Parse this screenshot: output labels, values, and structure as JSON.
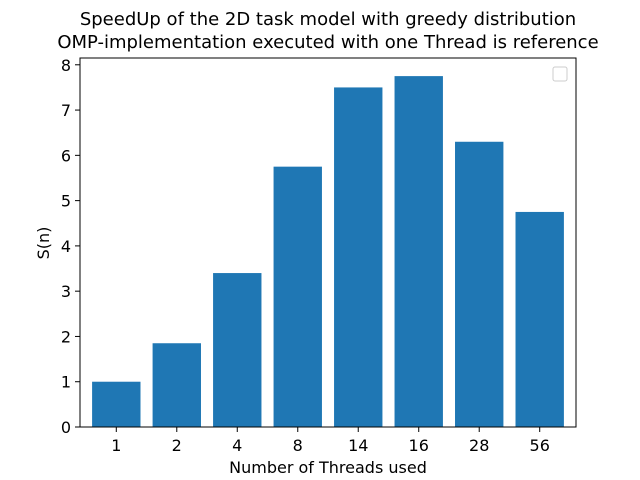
{
  "chart_data": {
    "type": "bar",
    "title": "SpeedUp of the 2D task model with greedy distribution",
    "subtitle": "OMP-implementation executed with one Thread is reference",
    "xlabel": "Number of Threads used",
    "ylabel": "S(n)",
    "categories": [
      "1",
      "2",
      "4",
      "8",
      "14",
      "16",
      "28",
      "56"
    ],
    "values": [
      1.0,
      1.85,
      3.4,
      5.75,
      7.5,
      7.75,
      6.3,
      4.75
    ],
    "ylim": [
      0,
      8.15
    ],
    "yticks": [
      "0",
      "1",
      "2",
      "3",
      "4",
      "5",
      "6",
      "7",
      "8"
    ],
    "bar_color": "#1f77b4",
    "grid": false,
    "legend_placement": "top-right",
    "legend_entries": []
  }
}
